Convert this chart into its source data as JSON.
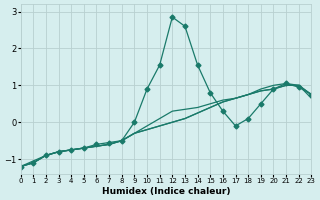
{
  "xlabel": "Humidex (Indice chaleur)",
  "ylabel": "",
  "background_color": "#d6eeee",
  "grid_color": "#b8d0d0",
  "line_color": "#1a7a6a",
  "xlim": [
    0,
    23
  ],
  "ylim": [
    -1.4,
    3.2
  ],
  "x_ticks": [
    0,
    1,
    2,
    3,
    4,
    5,
    6,
    7,
    8,
    9,
    10,
    11,
    12,
    13,
    14,
    15,
    16,
    17,
    18,
    19,
    20,
    21,
    22,
    23
  ],
  "y_ticks": [
    -1,
    0,
    1,
    2,
    3
  ],
  "series": [
    {
      "x": [
        0,
        1,
        2,
        3,
        4,
        5,
        6,
        7,
        8,
        9,
        10,
        11,
        12,
        13,
        14,
        15,
        16,
        17,
        18,
        19,
        20,
        21,
        22,
        23
      ],
      "y": [
        -1.2,
        -1.1,
        -0.9,
        -0.8,
        -0.75,
        -0.7,
        -0.6,
        -0.55,
        -0.5,
        0.0,
        0.9,
        1.55,
        2.85,
        2.6,
        1.55,
        0.8,
        0.3,
        -0.1,
        0.1,
        0.5,
        0.9,
        1.05,
        0.95,
        0.75
      ],
      "marker": "D",
      "markersize": 2.5
    },
    {
      "x": [
        0,
        1,
        2,
        3,
        4,
        5,
        6,
        7,
        8,
        9,
        10,
        11,
        12,
        13,
        14,
        15,
        16,
        17,
        18,
        19,
        20,
        21,
        22,
        23
      ],
      "y": [
        -1.2,
        -1.1,
        -0.9,
        -0.8,
        -0.75,
        -0.7,
        -0.65,
        -0.6,
        -0.5,
        -0.3,
        -0.2,
        -0.1,
        0.0,
        0.1,
        0.25,
        0.4,
        0.55,
        0.65,
        0.75,
        0.85,
        0.9,
        1.0,
        1.0,
        0.75
      ],
      "marker": null,
      "markersize": 0
    },
    {
      "x": [
        0,
        1,
        2,
        3,
        4,
        5,
        6,
        7,
        8,
        9,
        10,
        11,
        12,
        13,
        14,
        15,
        16,
        17,
        18,
        19,
        20,
        21,
        22,
        23
      ],
      "y": [
        -1.2,
        -1.1,
        -0.9,
        -0.8,
        -0.75,
        -0.7,
        -0.65,
        -0.6,
        -0.5,
        -0.3,
        -0.2,
        -0.1,
        0.0,
        0.1,
        0.25,
        0.4,
        0.55,
        0.65,
        0.75,
        0.85,
        0.9,
        1.0,
        1.0,
        0.65
      ],
      "marker": null,
      "markersize": 0
    },
    {
      "x": [
        0,
        1,
        2,
        3,
        4,
        5,
        6,
        7,
        8,
        9,
        10,
        11,
        12,
        13,
        14,
        15,
        16,
        17,
        18,
        19,
        20,
        21,
        22,
        23
      ],
      "y": [
        -1.2,
        -1.05,
        -0.9,
        -0.8,
        -0.75,
        -0.7,
        -0.65,
        -0.6,
        -0.5,
        -0.3,
        -0.1,
        0.1,
        0.3,
        0.35,
        0.4,
        0.5,
        0.6,
        0.65,
        0.75,
        0.9,
        1.0,
        1.05,
        1.0,
        0.75
      ],
      "marker": null,
      "markersize": 0
    }
  ]
}
